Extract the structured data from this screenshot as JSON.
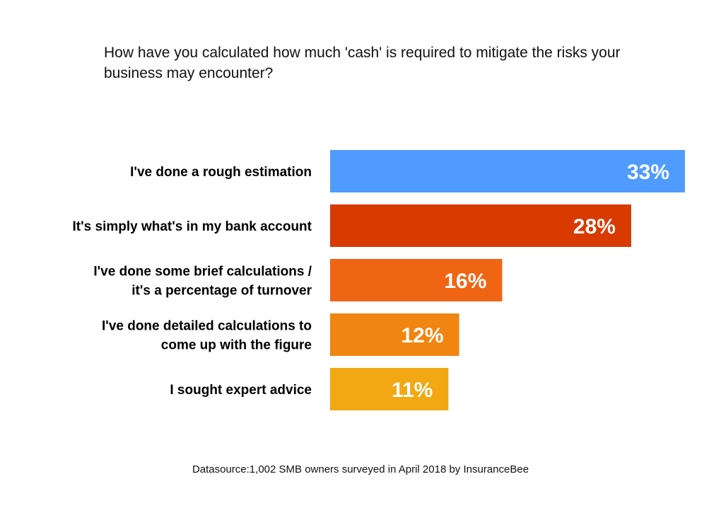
{
  "title": "How have you calculated how much 'cash' is required to mitigate the risks your business may encounter?",
  "source": "Datasource:1,002 SMB owners surveyed in April 2018 by InsuranceBee",
  "chart_data": {
    "type": "bar",
    "orientation": "horizontal",
    "categories": [
      [
        "I've done a rough estimation"
      ],
      [
        "It's simply what's in my bank account"
      ],
      [
        "I've done some brief calculations /",
        "it's a percentage of turnover"
      ],
      [
        "I've done detailed calculations to",
        "come up with the figure"
      ],
      [
        "I sought expert advice"
      ]
    ],
    "values": [
      33,
      28,
      16,
      12,
      11
    ],
    "value_labels": [
      "33%",
      "28%",
      "16%",
      "12%",
      "11%"
    ],
    "colors": [
      "#4f9bff",
      "#d83a00",
      "#f06513",
      "#f08512",
      "#f2a813"
    ],
    "xlim": [
      0,
      33
    ],
    "grid": false,
    "legend": "none"
  }
}
